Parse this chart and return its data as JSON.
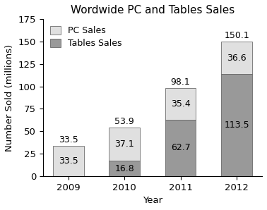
{
  "title": "Wordwide PC and Tables Sales",
  "xlabel": "Year",
  "ylabel": "Number Sold (millions)",
  "years": [
    "2009",
    "2010",
    "2011",
    "2012"
  ],
  "pc_sales": [
    33.5,
    37.1,
    35.4,
    36.6
  ],
  "tablet_sales": [
    0.0,
    16.8,
    62.7,
    113.5
  ],
  "pc_totals": [
    33.5,
    53.9,
    98.1,
    150.1
  ],
  "pc_color": "#e0e0e0",
  "tablet_color": "#999999",
  "ylim": [
    0,
    175
  ],
  "yticks": [
    0,
    25,
    50,
    75,
    100,
    125,
    150,
    175
  ],
  "bar_width": 0.55,
  "legend_labels": [
    "PC Sales",
    "Tables Sales"
  ],
  "title_fontsize": 11,
  "label_fontsize": 9.5,
  "tick_fontsize": 9.5,
  "annot_fontsize": 9
}
